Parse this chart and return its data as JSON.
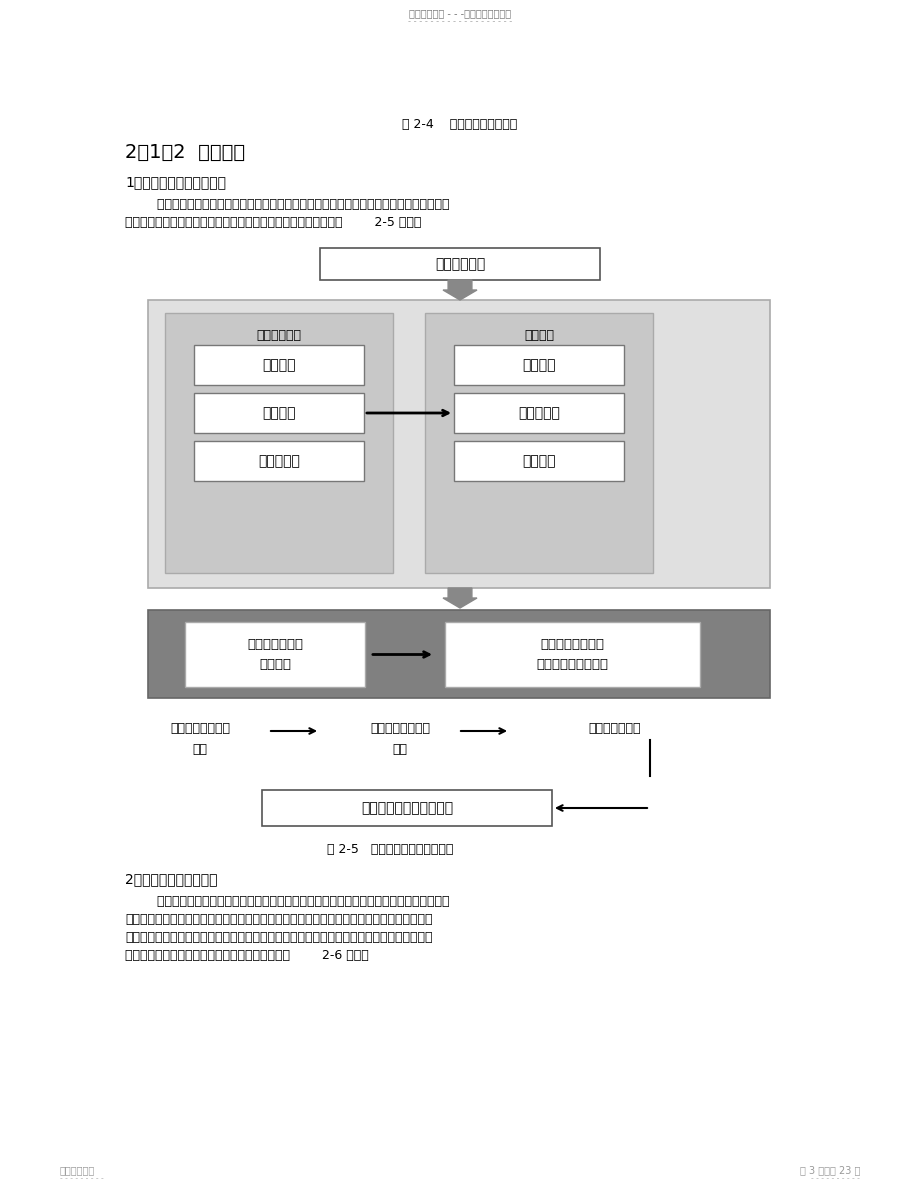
{
  "page_bg": "#ffffff",
  "header_text": "名师资料总结 - - -精品资料欢迎下载",
  "header_sub": "- - - - - - - - - - - - - - - - - - -",
  "footer_left": "名师精心整理",
  "footer_left_sub": "- - - - - - - - -",
  "footer_right": "第 3 页，共 23 页",
  "footer_right_sub": "- - - - - - - - - -",
  "fig24_caption": "图 2-4    采集数据的方式选择",
  "section_title": "2．1．2  数据建模",
  "subsection1": "1．客户信息数据库的构建",
  "para1_line1": "        数据建模的过程是指对构建模型的原始数据进行描述和解释的过程，数据建模前企业需将",
  "para1_line2": "收集的客户数据加以整理并录入数据库，客户数据库构建体系如图        2-5 所示。",
  "top_box_text": "客户相关信息",
  "left_panel_title": "客户类型分区",
  "left_boxes": [
    "企业客户",
    "个人客户",
    "团体及其他"
  ],
  "right_panel_title": "角色分类",
  "right_boxes": [
    "直接客户",
    "客户联系人",
    "潜在客户"
  ],
  "bottom_dark_left": "客户基本信息与\n识别编号",
  "bottom_dark_right": "验证个人身份证号\n码、企业商业注册号",
  "flow_text1": "获取各种客户地址\n信息",
  "flow_text2": "获取客户市场相关\n属性",
  "flow_text3": "获取客户联系人",
  "bottom_box_text": "记录、更新客户接触信息",
  "fig25_caption": "图 2-5   客户信息数据库结构体系",
  "subsection2": "2．客户数据模型的构建",
  "para2_line1": "        数据模型可揭示原始数据的本质属性，或能够成功地对数据未来发展做出预测或说明。企",
  "para2_line2": "业要真正了解客户，为客户提供优质的服务，提高企业效益，需针对已采集的客户数据构建各",
  "para2_line3": "相关客户分析项目模型，建立统一、全面的客户视角。客户数据模型的建设属于企业战略规划",
  "para2_line4": "中信息化建设的一部分。客户数据模型的构建如图        2-6 所示。",
  "panel_fill": "#c8c8c8",
  "outer_box_fill": "#e8e8e8",
  "dark_bar_fill": "#808080"
}
